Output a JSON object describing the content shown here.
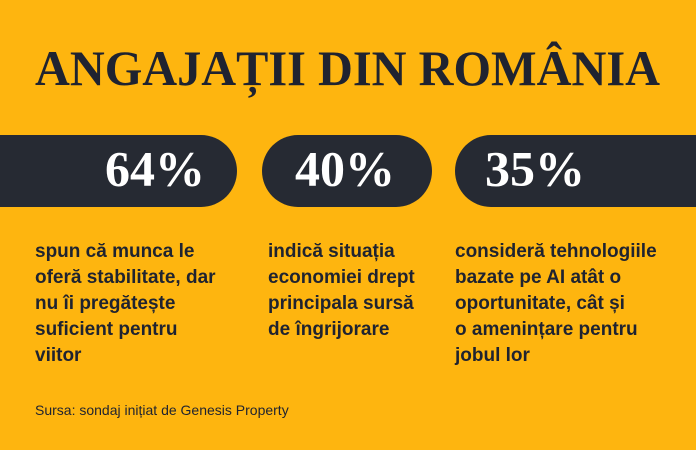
{
  "header": {
    "title": "ANGAJAȚII DIN ROMÂNIA"
  },
  "stats": [
    {
      "value": "64%",
      "lines": [
        "spun că munca le",
        "oferă stabilitate, dar",
        "nu îi pregătește",
        "suficient pentru",
        "viitor"
      ]
    },
    {
      "value": "40%",
      "lines": [
        "indică situația",
        "economiei drept",
        "principala sursă",
        "de îngrijorare"
      ]
    },
    {
      "value": "35%",
      "lines": [
        "consideră tehnologiile",
        "bazate pe AI atât o",
        "oportunitate, cât și",
        "o amenințare pentru",
        "jobul lor"
      ]
    }
  ],
  "footer": {
    "source": "Sursa: sondaj inițiat de Genesis Property"
  }
}
